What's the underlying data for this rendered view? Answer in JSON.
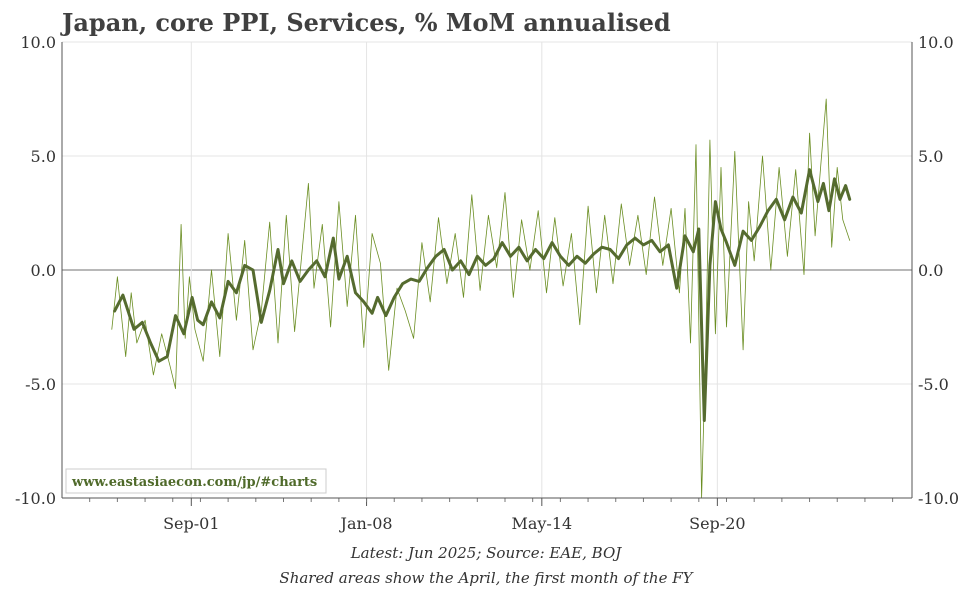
{
  "chart_data": {
    "type": "line",
    "title": "Japan, core PPI, Services, % MoM annualised",
    "watermark": "www.eastasiaecon.com/jp/#charts",
    "footnote_1": "Latest: Jun 2025; Source: EAE, BOJ",
    "footnote_2": "Shared areas show the April, the first month of the FY",
    "ylim": [
      -10,
      10
    ],
    "y_ticks": [
      {
        "value": 10,
        "label": "10.0"
      },
      {
        "value": 5,
        "label": "5.0"
      },
      {
        "value": 0,
        "label": "0.0"
      },
      {
        "value": -5,
        "label": "-5.0"
      },
      {
        "value": -10,
        "label": "-10.0"
      }
    ],
    "x_range": [
      1997.0,
      2027.7
    ],
    "x_ticks": [
      {
        "value": 2001.67,
        "label": "Sep-01"
      },
      {
        "value": 2008.0,
        "label": "Jan-08"
      },
      {
        "value": 2014.33,
        "label": "May-14"
      },
      {
        "value": 2020.67,
        "label": "Sep-20"
      }
    ],
    "grid": true,
    "colors": {
      "thick": "#556b2f",
      "thin": "#6b8e23",
      "zero_line": "#a0a0a0",
      "grid": "#e4e4e4"
    },
    "series": [
      {
        "style": "thick",
        "x": [
          1998.9,
          1999.2,
          1999.6,
          1999.9,
          2000.2,
          2000.5,
          2000.8,
          2001.1,
          2001.4,
          2001.7,
          2001.9,
          2002.1,
          2002.4,
          2002.7,
          2003.0,
          2003.3,
          2003.6,
          2003.9,
          2004.2,
          2004.5,
          2004.8,
          2005.0,
          2005.3,
          2005.6,
          2005.9,
          2006.2,
          2006.5,
          2006.8,
          2007.0,
          2007.3,
          2007.6,
          2007.9,
          2008.2,
          2008.4,
          2008.7,
          2009.0,
          2009.3,
          2009.6,
          2009.9,
          2010.2,
          2010.5,
          2010.8,
          2011.1,
          2011.4,
          2011.7,
          2012.0,
          2012.3,
          2012.6,
          2012.9,
          2013.2,
          2013.5,
          2013.8,
          2014.1,
          2014.4,
          2014.7,
          2015.0,
          2015.3,
          2015.6,
          2015.9,
          2016.2,
          2016.5,
          2016.8,
          2017.1,
          2017.4,
          2017.7,
          2018.0,
          2018.3,
          2018.6,
          2018.9,
          2019.2,
          2019.5,
          2019.8,
          2020.0,
          2020.2,
          2020.4,
          2020.6,
          2020.8,
          2021.0,
          2021.3,
          2021.6,
          2021.9,
          2022.2,
          2022.5,
          2022.8,
          2023.1,
          2023.4,
          2023.7,
          2024.0,
          2024.3,
          2024.5,
          2024.7,
          2024.9,
          2025.1,
          2025.3,
          2025.45
        ],
        "values": [
          -1.8,
          -1.1,
          -2.6,
          -2.3,
          -3.2,
          -4.0,
          -3.8,
          -2.0,
          -2.8,
          -1.2,
          -2.2,
          -2.4,
          -1.4,
          -2.1,
          -0.5,
          -1.0,
          0.2,
          0.0,
          -2.3,
          -0.9,
          0.9,
          -0.6,
          0.4,
          -0.5,
          0.0,
          0.4,
          -0.3,
          1.4,
          -0.4,
          0.6,
          -1.0,
          -1.4,
          -1.9,
          -1.2,
          -2.0,
          -1.2,
          -0.6,
          -0.4,
          -0.5,
          0.1,
          0.6,
          0.9,
          0.0,
          0.4,
          -0.2,
          0.6,
          0.2,
          0.5,
          1.2,
          0.6,
          1.0,
          0.4,
          0.9,
          0.5,
          1.2,
          0.6,
          0.2,
          0.6,
          0.3,
          0.7,
          1.0,
          0.9,
          0.5,
          1.1,
          1.4,
          1.1,
          1.3,
          0.8,
          1.1,
          -0.8,
          1.5,
          0.8,
          1.8,
          -6.6,
          0.2,
          3.0,
          1.8,
          1.2,
          0.2,
          1.7,
          1.3,
          1.9,
          2.6,
          3.1,
          2.2,
          3.2,
          2.5,
          4.4,
          3.0,
          3.8,
          2.6,
          4.0,
          3.1,
          3.7,
          3.1
        ]
      },
      {
        "style": "thin",
        "x": [
          1998.8,
          1999.0,
          1999.3,
          1999.5,
          1999.7,
          2000.0,
          2000.3,
          2000.6,
          2000.9,
          2001.1,
          2001.3,
          2001.45,
          2001.6,
          2001.8,
          2002.1,
          2002.4,
          2002.7,
          2003.0,
          2003.3,
          2003.6,
          2003.9,
          2004.2,
          2004.5,
          2004.8,
          2005.1,
          2005.4,
          2005.7,
          2005.9,
          2006.1,
          2006.4,
          2006.7,
          2007.0,
          2007.3,
          2007.6,
          2007.9,
          2008.2,
          2008.5,
          2008.8,
          2009.1,
          2009.4,
          2009.7,
          2010.0,
          2010.3,
          2010.6,
          2010.9,
          2011.2,
          2011.5,
          2011.8,
          2012.1,
          2012.4,
          2012.7,
          2013.0,
          2013.3,
          2013.6,
          2013.9,
          2014.2,
          2014.5,
          2014.8,
          2015.1,
          2015.4,
          2015.7,
          2016.0,
          2016.3,
          2016.6,
          2016.9,
          2017.2,
          2017.5,
          2017.8,
          2018.1,
          2018.4,
          2018.7,
          2019.0,
          2019.3,
          2019.5,
          2019.7,
          2019.9,
          2020.1,
          2020.25,
          2020.4,
          2020.6,
          2020.8,
          2021.0,
          2021.3,
          2021.6,
          2021.8,
          2022.0,
          2022.3,
          2022.6,
          2022.9,
          2023.2,
          2023.5,
          2023.8,
          2024.0,
          2024.2,
          2024.4,
          2024.6,
          2024.8,
          2025.0,
          2025.2,
          2025.45
        ],
        "values": [
          -2.6,
          -0.3,
          -3.8,
          -1.0,
          -3.2,
          -2.2,
          -4.6,
          -2.8,
          -4.2,
          -5.2,
          2.0,
          -3.0,
          -0.3,
          -2.6,
          -4.0,
          0.0,
          -3.8,
          1.6,
          -2.2,
          1.3,
          -3.5,
          -1.8,
          2.1,
          -3.2,
          2.4,
          -2.7,
          1.2,
          3.8,
          -0.8,
          2.0,
          -2.5,
          3.0,
          -1.6,
          2.4,
          -3.4,
          1.6,
          0.3,
          -4.4,
          -0.8,
          -1.8,
          -3.0,
          1.2,
          -1.4,
          2.3,
          -0.6,
          1.6,
          -1.2,
          3.3,
          -0.9,
          2.4,
          0.1,
          3.4,
          -1.2,
          2.2,
          0.0,
          2.6,
          -1.0,
          2.3,
          -0.7,
          1.6,
          -2.4,
          2.8,
          -1.0,
          2.4,
          -0.6,
          2.9,
          0.2,
          2.4,
          -0.2,
          3.2,
          0.2,
          2.7,
          -1.0,
          2.7,
          -3.2,
          5.5,
          -10.0,
          -3.4,
          5.7,
          -2.8,
          4.5,
          -2.5,
          5.2,
          -3.5,
          3.0,
          0.4,
          5.0,
          0.0,
          4.5,
          0.6,
          4.4,
          -0.2,
          6.0,
          1.5,
          4.5,
          7.5,
          1.0,
          4.5,
          2.2,
          1.3
        ]
      }
    ]
  }
}
